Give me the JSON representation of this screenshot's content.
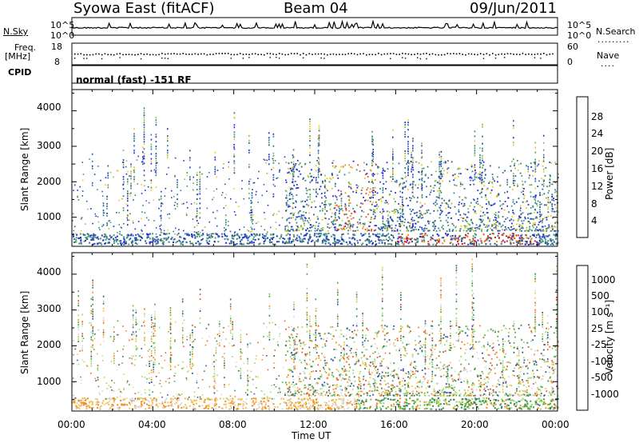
{
  "header": {
    "station": "Syowa East (fitACF)",
    "beam": "Beam 04",
    "date": "09/Jun/2011"
  },
  "top_panels": {
    "nsky_label": "N.Sky",
    "nsearch_label": "N.Search",
    "noise_ticks_left": [
      "10^5",
      "10^0"
    ],
    "noise_ticks_right": [
      "10^5",
      "10^0"
    ],
    "freq_label_1": "Freq.",
    "freq_label_2": "[MHz]",
    "freq_ticks": [
      "18",
      "8"
    ],
    "nave_label": "Nave",
    "nave_ticks": [
      "60",
      "0"
    ],
    "cpid_label": "CPID",
    "cpid_text": "normal (fast) -151 RF"
  },
  "time_axis": {
    "label": "Time UT",
    "ticks": [
      "00:00",
      "04:00",
      "08:00",
      "12:00",
      "16:00",
      "20:00",
      "00:00"
    ]
  },
  "colors": {
    "power": [
      "#1f2bd6",
      "#2b55a8",
      "#2f7f8a",
      "#4a9a6a",
      "#8fbf3a",
      "#f0c419",
      "#f08c1c",
      "#e8471c",
      "#d8141c"
    ],
    "velocity": [
      "#e8141c",
      "#f05a1c",
      "#f08c1c",
      "#f5c04a",
      "#d8d8d8",
      "#9ad86a",
      "#3fae3a",
      "#2f7f6a",
      "#2f4fa0",
      "#1f2bd6"
    ]
  },
  "chart_data": [
    {
      "type": "heatmap",
      "title": "",
      "xlabel": "",
      "ylabel": "Slant Range [km]",
      "ylim": [
        180,
        4600
      ],
      "xlim_hours": [
        0,
        24
      ],
      "yticks": [
        "4000",
        "3000",
        "2000",
        "1000"
      ],
      "colorbar": {
        "label": "Power [dB]",
        "ticks": [
          "28",
          "24",
          "20",
          "16",
          "12",
          "8",
          "4"
        ],
        "range": [
          0,
          30
        ]
      }
    },
    {
      "type": "heatmap",
      "title": "",
      "xlabel": "Time UT",
      "ylabel": "Slant Range [km]",
      "ylim": [
        180,
        4600
      ],
      "xlim_hours": [
        0,
        24
      ],
      "yticks": [
        "4000",
        "3000",
        "2000",
        "1000"
      ],
      "colorbar": {
        "label": "Velocity [m s⁻¹]",
        "ticks": [
          "1000",
          "500",
          "100",
          "25",
          "-25",
          "-100",
          "-500",
          "-1000"
        ],
        "range": [
          -1200,
          1200
        ]
      }
    }
  ]
}
